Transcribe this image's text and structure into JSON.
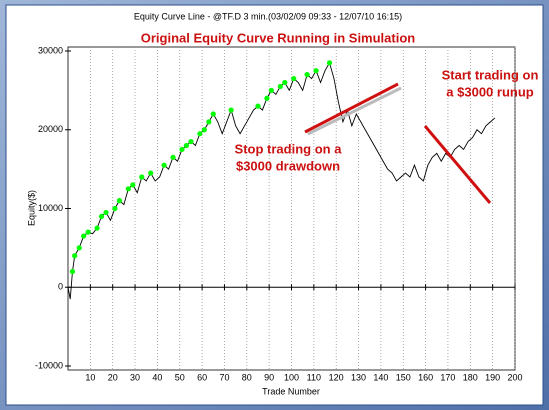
{
  "chart_data": {
    "type": "line",
    "title": "Equity Curve Line - @TF.D 3 min.(03/02/09 09:33 - 12/07/10 16:15)",
    "subtitle": "Original Equity Curve Running in Simulation",
    "x_label": "Trade Number",
    "y_label": "Equity($)",
    "annotations": [
      "Stop trading on a",
      "$3000 drawdown",
      "Start trading on",
      "a $3000 runup"
    ],
    "x": [
      0,
      1,
      2,
      3,
      5,
      7,
      9,
      11,
      13,
      15,
      17,
      19,
      21,
      23,
      25,
      27,
      29,
      31,
      33,
      35,
      37,
      39,
      41,
      43,
      45,
      47,
      49,
      51,
      53,
      55,
      57,
      59,
      61,
      63,
      65,
      67,
      69,
      71,
      73,
      75,
      77,
      79,
      81,
      83,
      85,
      87,
      89,
      91,
      93,
      95,
      97,
      99,
      101,
      103,
      105,
      107,
      109,
      111,
      113,
      115,
      117,
      119,
      121,
      123,
      125,
      127,
      129,
      131,
      133,
      135,
      137,
      139,
      141,
      143,
      145,
      147,
      149,
      151,
      153,
      155,
      157,
      159,
      161,
      163,
      165,
      167,
      169,
      171,
      173,
      175,
      177,
      179,
      181,
      183,
      185,
      187,
      189,
      191
    ],
    "series": [
      {
        "color": "#000000",
        "values": [
          0,
          -1500,
          2000,
          4000,
          5000,
          6500,
          7000,
          6800,
          7500,
          9000,
          9500,
          8500,
          10000,
          11000,
          10500,
          12500,
          13000,
          12000,
          14000,
          13500,
          14500,
          13500,
          14000,
          15500,
          15000,
          16500,
          16000,
          17500,
          18000,
          18500,
          18000,
          19500,
          20000,
          21000,
          22000,
          21000,
          19500,
          21000,
          22500,
          20500,
          19500,
          20500,
          21500,
          22500,
          23000,
          22500,
          24000,
          25000,
          24500,
          25500,
          26000,
          25000,
          26500,
          26000,
          25000,
          27000,
          26500,
          27500,
          26000,
          27500,
          28500,
          26500,
          23500,
          21000,
          22500,
          20500,
          22000,
          21000,
          20000,
          19000,
          18000,
          17000,
          16000,
          15000,
          14500,
          13500,
          14000,
          14500,
          14000,
          15500,
          14000,
          13500,
          15500,
          16500,
          17000,
          16000,
          17000,
          16500,
          17500,
          18000,
          17500,
          18500,
          19000,
          20000,
          19500,
          20500,
          21000,
          21500
        ]
      },
      {
        "color": "#00ff00",
        "marker": "circle",
        "values": [
          null,
          null,
          2000,
          4000,
          5000,
          6500,
          7000,
          null,
          7500,
          9000,
          9500,
          null,
          10000,
          11000,
          null,
          12500,
          13000,
          null,
          14000,
          null,
          14500,
          null,
          null,
          15500,
          null,
          16500,
          null,
          17500,
          18000,
          18500,
          null,
          19500,
          20000,
          21000,
          22000,
          null,
          null,
          null,
          22500,
          null,
          null,
          null,
          null,
          null,
          23000,
          null,
          24000,
          25000,
          null,
          25500,
          26000,
          null,
          26500,
          null,
          null,
          27000,
          null,
          27500,
          null,
          null,
          28500,
          null,
          null,
          null,
          null,
          null,
          null,
          null,
          null,
          null,
          null,
          null,
          null,
          null,
          null,
          null,
          null,
          null,
          null,
          null,
          null,
          null,
          null,
          null,
          null,
          null,
          null,
          null,
          null,
          null,
          null,
          null,
          null,
          null,
          null,
          null,
          null,
          null
        ]
      }
    ],
    "xlim": [
      0,
      200
    ],
    "ylim": [
      -10000,
      30000
    ],
    "xticks": [
      10,
      20,
      30,
      40,
      50,
      60,
      70,
      80,
      90,
      100,
      110,
      120,
      130,
      140,
      150,
      160,
      170,
      180,
      190,
      200
    ],
    "yticks": [
      -10000,
      0,
      10000,
      20000,
      30000
    ],
    "grid": true
  }
}
